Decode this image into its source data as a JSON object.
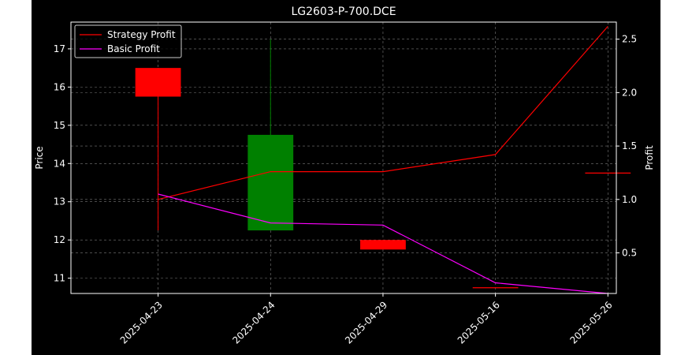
{
  "chart_data": {
    "type": "candlestick",
    "title": "LG2603-P-700.DCE",
    "xlabel": "",
    "ylabel": "Price",
    "y2label": "Profit",
    "categories": [
      "2025-04-23",
      "2025-04-24",
      "2025-04-29",
      "2025-05-16",
      "2025-05-26"
    ],
    "ylim": [
      10.6,
      17.7
    ],
    "y2lim": [
      0.12,
      2.66
    ],
    "yticks": [
      11,
      12,
      13,
      14,
      15,
      16,
      17
    ],
    "y2ticks": [
      0.5,
      1.0,
      1.5,
      2.0,
      2.5
    ],
    "y2ticklabels": [
      "0.5",
      "1.0",
      "1.5",
      "2.0",
      "2.5"
    ],
    "grid": true,
    "legend_position": "top-left",
    "candles": [
      {
        "x": "2025-04-23",
        "open": 16.5,
        "close": 15.75,
        "high": 16.5,
        "low": 12.25,
        "color": "#ff0000"
      },
      {
        "x": "2025-04-24",
        "open": 12.25,
        "close": 14.75,
        "high": 17.25,
        "low": 12.25,
        "color": "#008000"
      },
      {
        "x": "2025-04-29",
        "open": 12.0,
        "close": 11.75,
        "high": 12.0,
        "low": 11.75,
        "color": "#ff0000"
      },
      {
        "x": "2025-05-16",
        "open": 10.75,
        "close": 10.75,
        "high": 10.75,
        "low": 10.75,
        "color": "#ff0000"
      },
      {
        "x": "2025-05-26",
        "open": 13.75,
        "close": 13.75,
        "high": 13.75,
        "low": 13.75,
        "color": "#ff0000"
      }
    ],
    "series": [
      {
        "name": "Strategy Profit",
        "color": "#ff0000",
        "axis": "right",
        "values": [
          1.0,
          1.26,
          1.26,
          1.42,
          2.62
        ]
      },
      {
        "name": "Basic Profit",
        "color": "#ff00ff",
        "axis": "right",
        "values": [
          1.05,
          0.78,
          0.76,
          0.22,
          0.12
        ]
      }
    ]
  }
}
